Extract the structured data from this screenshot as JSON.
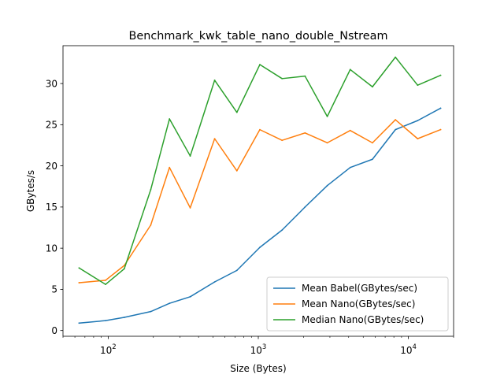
{
  "chart_data": {
    "type": "line",
    "title": "Benchmark_kwk_table_nano_double_Nstream",
    "xlabel": "Size (Bytes)",
    "ylabel": "GBytes/s",
    "xscale": "log",
    "xlim": [
      50,
      20000
    ],
    "ylim": [
      -0.7,
      34.6
    ],
    "grid": false,
    "legend_position": "lower-right",
    "x": [
      64,
      96,
      128,
      192,
      256,
      352,
      512,
      720,
      1024,
      1440,
      2048,
      2880,
      4096,
      5760,
      8192,
      11520,
      16384
    ],
    "x_ticks_major": [
      {
        "value": 100,
        "base": "10",
        "exp": "2"
      },
      {
        "value": 1000,
        "base": "10",
        "exp": "3"
      },
      {
        "value": 10000,
        "base": "10",
        "exp": "4"
      }
    ],
    "y_ticks": [
      {
        "value": 0,
        "label": "0"
      },
      {
        "value": 5,
        "label": "5"
      },
      {
        "value": 10,
        "label": "10"
      },
      {
        "value": 15,
        "label": "15"
      },
      {
        "value": 20,
        "label": "20"
      },
      {
        "value": 25,
        "label": "25"
      },
      {
        "value": 30,
        "label": "30"
      }
    ],
    "series": [
      {
        "name": "Mean Babel(GBytes/sec)",
        "color": "#1f77b4",
        "values": [
          0.9,
          1.2,
          1.6,
          2.3,
          3.3,
          4.1,
          5.9,
          7.3,
          10.1,
          12.2,
          15.0,
          17.6,
          19.8,
          20.8,
          24.4,
          25.5,
          27.0
        ]
      },
      {
        "name": "Mean Nano(GBytes/sec)",
        "color": "#ff7f0e",
        "values": [
          5.8,
          6.1,
          7.9,
          12.8,
          19.8,
          14.9,
          23.3,
          19.4,
          24.4,
          23.1,
          24.0,
          22.8,
          24.3,
          22.8,
          25.6,
          23.3,
          24.4
        ]
      },
      {
        "name": "Median Nano(GBytes/sec)",
        "color": "#2ca02c",
        "values": [
          7.6,
          5.6,
          7.5,
          17.1,
          25.7,
          21.2,
          30.4,
          26.5,
          32.3,
          30.6,
          30.9,
          26.0,
          31.7,
          29.6,
          33.2,
          29.8,
          31.0
        ]
      }
    ]
  }
}
